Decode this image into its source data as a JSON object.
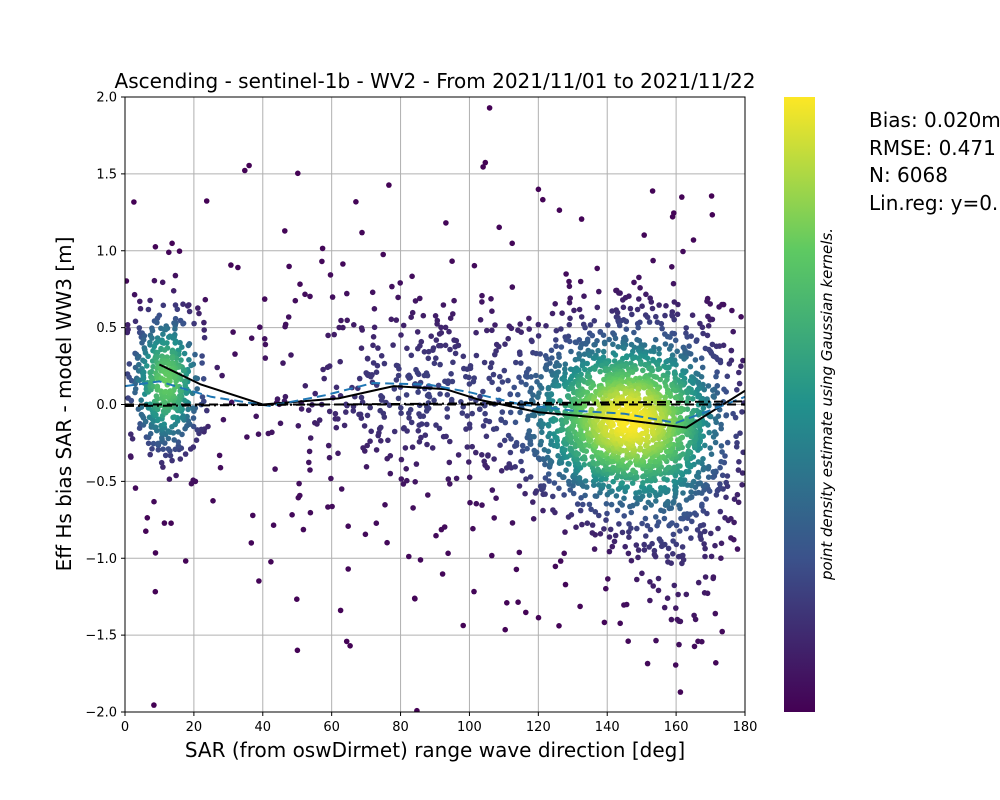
{
  "chart_data": {
    "type": "scatter",
    "title": "Ascending - sentinel-1b - WV2 - From 2021/11/01 to 2021/11/22",
    "xlabel": "SAR (from oswDirmet) range wave direction [deg]",
    "ylabel": "Eff Hs bias SAR - model WW3 [m]",
    "xlim": [
      0,
      180
    ],
    "ylim": [
      -2.0,
      2.0
    ],
    "x_ticks": [
      "0",
      "20",
      "40",
      "60",
      "80",
      "100",
      "120",
      "140",
      "160",
      "180"
    ],
    "y_ticks": [
      "2.0",
      "1.5",
      "1.0",
      "0.5",
      "0.0",
      "−0.5",
      "−1.0",
      "−1.5",
      "−2.0"
    ],
    "grid": true,
    "colorbar_label": "point density estimate using Gaussian kernels.",
    "colormap": [
      "#440154",
      "#3b528b",
      "#21918c",
      "#5ec962",
      "#fde725"
    ],
    "stats_text": [
      "Bias: 0.020m",
      "RMSE: 0.471",
      "N: 6068",
      "Lin.reg: y=0."
    ],
    "point_count": 6068,
    "density_clusters": [
      {
        "x_center": 12,
        "y_center": 0.15,
        "x_spread": 6,
        "y_spread": 0.25,
        "weight": 0.14
      },
      {
        "x_center": 145,
        "y_center": -0.1,
        "x_spread": 15,
        "y_spread": 0.3,
        "weight": 0.58
      },
      {
        "x_center": 88,
        "y_center": 0.1,
        "x_spread": 25,
        "y_spread": 0.3,
        "weight": 0.1
      },
      {
        "x_center": 160,
        "y_center": -0.4,
        "x_spread": 10,
        "y_spread": 0.55,
        "weight": 0.1
      },
      {
        "x_center": 90,
        "y_center": 0.0,
        "x_spread": 50,
        "y_spread": 0.7,
        "weight": 0.08
      }
    ],
    "series": [
      {
        "style": "solid",
        "color": "#000000",
        "x": [
          10,
          22,
          40,
          62,
          78,
          93,
          103,
          120,
          145,
          163,
          180
        ],
        "y": [
          0.26,
          0.13,
          0.0,
          0.04,
          0.12,
          0.1,
          0.03,
          -0.05,
          -0.1,
          -0.15,
          0.09
        ]
      },
      {
        "style": "dashed",
        "color": "#1f77b4",
        "x": [
          0,
          10,
          25,
          42,
          58,
          72,
          88,
          100,
          115,
          130,
          145,
          160,
          172,
          180
        ],
        "y": [
          0.12,
          0.15,
          0.05,
          -0.01,
          0.06,
          0.14,
          0.13,
          0.08,
          0.0,
          -0.04,
          -0.06,
          -0.12,
          -0.02,
          0.05
        ]
      },
      {
        "style": "dashed",
        "color": "#000000",
        "x": [
          0,
          180
        ],
        "y": [
          0.0,
          0.0
        ]
      },
      {
        "style": "dashdot",
        "color": "#000000",
        "x": [
          0,
          180
        ],
        "y": [
          -0.01,
          0.02
        ]
      }
    ]
  }
}
